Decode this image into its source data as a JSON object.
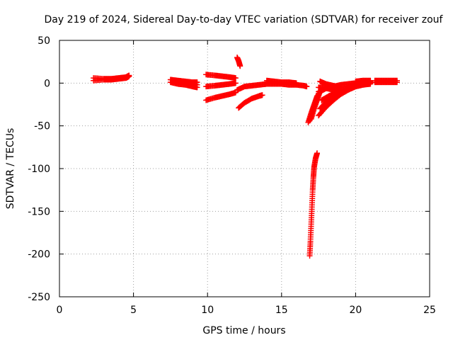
{
  "chart_data": {
    "type": "scatter",
    "title": "Day 219 of 2024, Sidereal Day-to-day VTEC variation (SDTVAR) for receiver zouf",
    "xlabel": "GPS time / hours",
    "ylabel": "SDTVAR / TECUs",
    "xlim": [
      0,
      25
    ],
    "ylim": [
      -250,
      50
    ],
    "xticks": [
      0,
      5,
      10,
      15,
      20,
      25
    ],
    "yticks": [
      -250,
      -200,
      -150,
      -100,
      -50,
      0,
      50
    ],
    "grid": true,
    "marker": "+",
    "color": "#ff0000",
    "segments": [
      {
        "x": [
          2.3,
          3.0,
          3.5,
          4.0,
          4.5,
          4.7
        ],
        "y": [
          6,
          5,
          5,
          6,
          7,
          9
        ]
      },
      {
        "x": [
          2.3,
          3.0,
          3.5,
          4.0,
          4.5,
          4.7
        ],
        "y": [
          3,
          4,
          4,
          5,
          6,
          8
        ]
      },
      {
        "x": [
          7.5,
          8.0,
          8.5,
          9.0,
          9.3
        ],
        "y": [
          4,
          3,
          2,
          1,
          1
        ]
      },
      {
        "x": [
          7.5,
          8.0,
          8.5,
          9.0,
          9.3
        ],
        "y": [
          1,
          -1,
          -2,
          -4,
          -5
        ]
      },
      {
        "x": [
          7.8,
          8.3,
          8.8,
          9.3
        ],
        "y": [
          3,
          1,
          0,
          -2
        ]
      },
      {
        "x": [
          9.9,
          10.5,
          11.0,
          11.5,
          11.9
        ],
        "y": [
          10,
          9,
          8,
          7,
          6
        ]
      },
      {
        "x": [
          9.9,
          10.5,
          11.0,
          11.5,
          11.9
        ],
        "y": [
          -4,
          -3,
          -2,
          -1,
          0
        ]
      },
      {
        "x": [
          9.9,
          10.5,
          11.0,
          11.5,
          11.9
        ],
        "y": [
          -20,
          -17,
          -15,
          -13,
          -11
        ]
      },
      {
        "x": [
          12.0,
          12.1,
          12.2
        ],
        "y": [
          30,
          26,
          20
        ]
      },
      {
        "x": [
          12.0,
          12.5,
          13.0,
          13.5,
          14.0,
          14.5,
          15.0,
          15.5,
          16.0,
          16.5,
          16.7
        ],
        "y": [
          -8,
          -4,
          -3,
          -2,
          -1,
          -1,
          -1,
          -2,
          -2,
          -3,
          -4
        ]
      },
      {
        "x": [
          14.0,
          14.5,
          15.0,
          15.5,
          16.0
        ],
        "y": [
          3,
          2,
          1,
          1,
          0
        ]
      },
      {
        "x": [
          12.1,
          12.5,
          13.0,
          13.5,
          13.7
        ],
        "y": [
          -29,
          -23,
          -18,
          -15,
          -14
        ]
      },
      {
        "x": [
          16.9,
          16.95,
          17.0,
          17.05,
          17.1,
          17.15,
          17.2,
          17.3,
          17.4
        ],
        "y": [
          -202,
          -185,
          -165,
          -145,
          -125,
          -110,
          -98,
          -88,
          -82
        ]
      },
      {
        "x": [
          16.8,
          17.0,
          17.2,
          17.4
        ],
        "y": [
          -46,
          -35,
          -25,
          -15
        ]
      },
      {
        "x": [
          16.9,
          17.1,
          17.3,
          17.5
        ],
        "y": [
          -44,
          -32,
          -22,
          -12
        ]
      },
      {
        "x": [
          17.0,
          17.2,
          17.4,
          17.6
        ],
        "y": [
          -42,
          -30,
          -20,
          -10
        ]
      },
      {
        "x": [
          17.5,
          18.0,
          18.5,
          19.0,
          19.5,
          20.0,
          20.5,
          21.0
        ],
        "y": [
          -38,
          -28,
          -20,
          -13,
          -8,
          -4,
          -2,
          -1
        ]
      },
      {
        "x": [
          17.6,
          18.0,
          18.5,
          19.0,
          19.5,
          20.0,
          20.5,
          21.0
        ],
        "y": [
          -30,
          -22,
          -16,
          -11,
          -7,
          -4,
          -2,
          0
        ]
      },
      {
        "x": [
          17.7,
          18.2,
          18.7,
          19.2,
          19.7,
          20.2,
          20.7,
          21.0
        ],
        "y": [
          -20,
          -15,
          -11,
          -7,
          -4,
          -2,
          0,
          1
        ]
      },
      {
        "x": [
          17.5,
          17.8,
          18.0,
          18.5,
          19.0,
          19.5,
          20.0,
          20.5,
          21.0
        ],
        "y": [
          -10,
          -8,
          -6,
          -4,
          -2,
          -1,
          0,
          1,
          2
        ]
      },
      {
        "x": [
          17.6,
          18.0,
          18.5,
          19.0
        ],
        "y": [
          2,
          -1,
          -3,
          -5
        ]
      },
      {
        "x": [
          17.5,
          18.0,
          18.5,
          19.0
        ],
        "y": [
          -5,
          -6,
          -8,
          -9
        ]
      },
      {
        "x": [
          19.5,
          20.0,
          20.5,
          21.0
        ],
        "y": [
          -6,
          -3,
          -1,
          0
        ]
      },
      {
        "x": [
          20.0,
          20.5,
          21.0
        ],
        "y": [
          2,
          3,
          3
        ]
      },
      {
        "x": [
          21.3,
          21.8,
          22.3,
          22.8
        ],
        "y": [
          1,
          1,
          1,
          1
        ]
      },
      {
        "x": [
          21.3,
          21.8,
          22.3,
          22.8
        ],
        "y": [
          3,
          3,
          3,
          3
        ]
      }
    ]
  }
}
